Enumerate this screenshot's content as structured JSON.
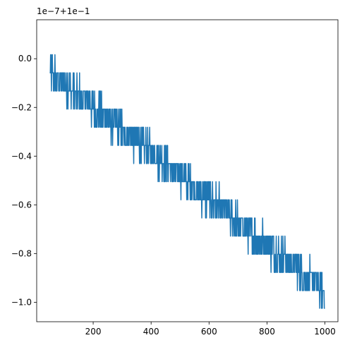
{
  "chart_data": {
    "type": "line",
    "title": "",
    "xlabel": "",
    "ylabel": "",
    "offset_text": "1e−7+1e−1",
    "xlim": [
      5,
      1045
    ],
    "ylim": [
      -1.08,
      0.16
    ],
    "xticks": [
      200,
      400,
      600,
      800,
      1000
    ],
    "xtick_labels": [
      "200",
      "400",
      "600",
      "800",
      "1000"
    ],
    "yticks": [
      0.0,
      -0.2,
      -0.4,
      -0.6,
      -0.8,
      -1.0
    ],
    "ytick_labels": [
      "0.0",
      "−0.2",
      "−0.4",
      "−0.6",
      "−0.8",
      "−1.0"
    ],
    "grid": false,
    "series": [
      {
        "color": "#1f77b4",
        "x_start": 50,
        "x_end": 1000,
        "trend_start": -0.055,
        "trend_end": -0.955,
        "noise_half_range": 0.07,
        "quantization_step": 0.0745,
        "quantization_base": 0.0165
      }
    ]
  }
}
